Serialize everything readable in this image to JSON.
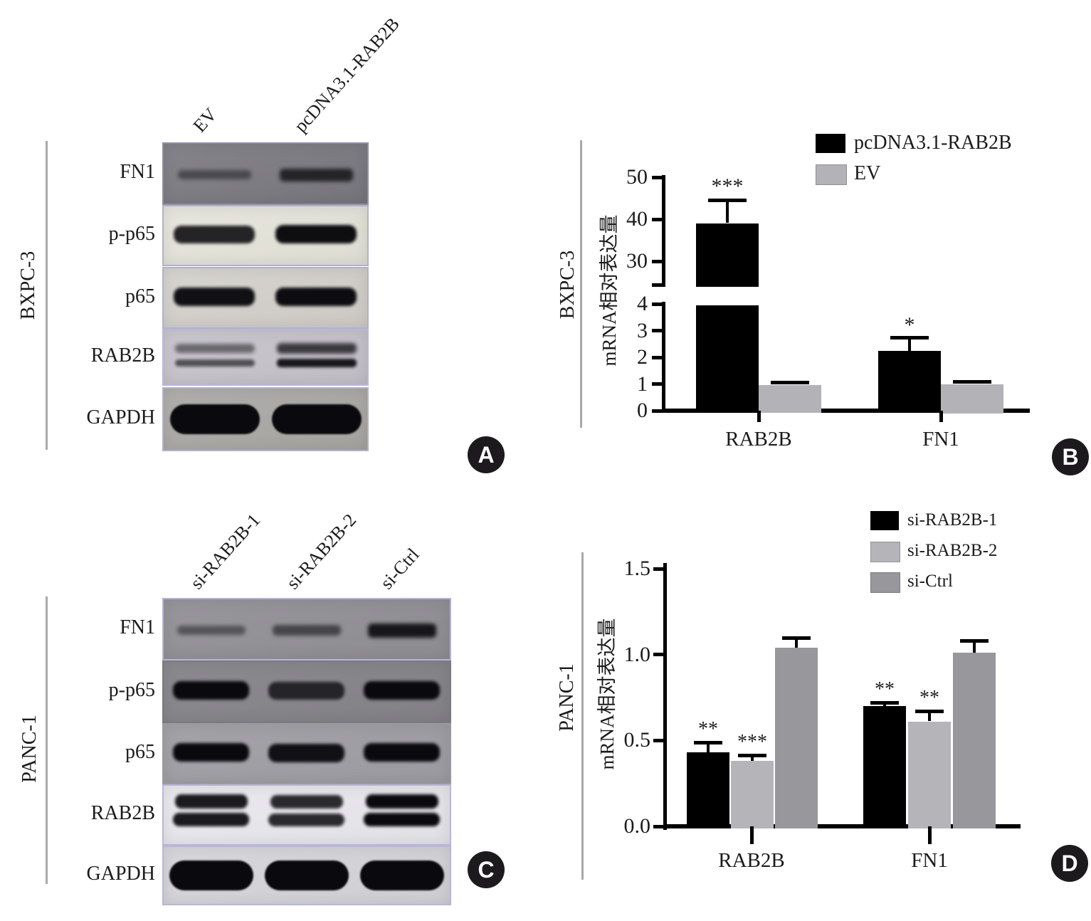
{
  "panels": {
    "A": {
      "label": "A",
      "type": "western_blot",
      "cell_line": "BXPC-3"
    },
    "B": {
      "label": "B",
      "type": "bar_chart",
      "cell_line": "BXPC-3"
    },
    "C": {
      "label": "C",
      "type": "western_blot",
      "cell_line": "PANC-1"
    },
    "D": {
      "label": "D",
      "type": "bar_chart",
      "cell_line": "PANC-1"
    }
  },
  "western_blots": {
    "A": {
      "cell_line": "BXPC-3",
      "lanes": [
        "EV",
        "pcDNA3.1-RAB2B"
      ],
      "rows": [
        {
          "protein": "FN1",
          "style": "faint",
          "bg": "#85848a",
          "bg2": "#76757b",
          "border": "#908fa6",
          "bands": [
            0.5,
            0.85
          ]
        },
        {
          "protein": "p-p65",
          "style": "strong",
          "bg": "#e7e6de",
          "bg2": "#deddd3",
          "border": "#b2b1cc",
          "bands": [
            0.88,
            0.98
          ]
        },
        {
          "protein": "p65",
          "style": "strong",
          "bg": "#d7d5d0",
          "bg2": "#ccc9c4",
          "border": "#b2b1cc",
          "bands": [
            0.96,
            0.98
          ]
        },
        {
          "protein": "RAB2B",
          "style": "double",
          "bg": "#cac8ce",
          "bg2": "#c0bec4",
          "border": "#b8b6dc",
          "bands": [
            0.62,
            0.92
          ]
        },
        {
          "protein": "GAPDH",
          "style": "blob",
          "bg": "#b1afac",
          "bg2": "#a5a3a0",
          "border": "#b2b1cc",
          "bands": [
            1,
            1
          ]
        }
      ]
    },
    "C": {
      "cell_line": "PANC-1",
      "lanes": [
        "si-RAB2B-1",
        "si-RAB2B-2",
        "si-Ctrl"
      ],
      "rows": [
        {
          "protein": "FN1",
          "style": "faint",
          "bg": "#97969b",
          "bg2": "#8d8c91",
          "border": "#b6b4d8",
          "bands": [
            0.5,
            0.62,
            1.0
          ]
        },
        {
          "protein": "p-p65",
          "style": "strong",
          "bg": "#8b8a8f",
          "bg2": "#828186",
          "border": "#7b7a7f",
          "bands": [
            1.0,
            0.78,
            1.0
          ]
        },
        {
          "protein": "p65",
          "style": "strong",
          "bg": "#a4a3a8",
          "bg2": "#9b9aa0",
          "border": "#9b9aa0",
          "bands": [
            1.0,
            0.95,
            1.0
          ]
        },
        {
          "protein": "RAB2B",
          "style": "double2",
          "bg": "#eae9ee",
          "bg2": "#e2e1e6",
          "border": "#b8b6dc",
          "bands": [
            0.92,
            0.85,
            1.0
          ]
        },
        {
          "protein": "GAPDH",
          "style": "blob",
          "bg": "#d8d7dc",
          "bg2": "#cfced3",
          "border": "#b8b6dc",
          "bands": [
            1,
            1,
            1
          ]
        }
      ]
    }
  },
  "chart_data": [
    {
      "panel": "B",
      "type": "bar",
      "cell_line": "BXPC-3",
      "title": "",
      "xlabel": "",
      "ylabel": "mRNA相对表达量",
      "categories": [
        "RAB2B",
        "FN1"
      ],
      "series": [
        {
          "name": "pcDNA3.1-RAB2B",
          "color": "#000000",
          "values": [
            39,
            2.25
          ],
          "errors": [
            5.5,
            0.45
          ],
          "sig": [
            "***",
            "*"
          ]
        },
        {
          "name": "EV",
          "color": "#b3b2b6",
          "values": [
            0.97,
            1.0
          ],
          "errors": [
            0.05,
            0.04
          ],
          "sig": [
            "",
            ""
          ]
        }
      ],
      "y_axis": {
        "broken": true,
        "lower_ticks": [
          0,
          1,
          2,
          3,
          4
        ],
        "upper_ticks": [
          30,
          40,
          50
        ],
        "lower_range": [
          0,
          4
        ],
        "upper_range": [
          25,
          50
        ]
      },
      "grid": false,
      "legend_position": "top-right"
    },
    {
      "panel": "D",
      "type": "bar",
      "cell_line": "PANC-1",
      "title": "",
      "xlabel": "",
      "ylabel": "mRNA相对表达量",
      "categories": [
        "RAB2B",
        "FN1"
      ],
      "series": [
        {
          "name": "si-RAB2B-1",
          "color": "#000000",
          "values": [
            0.43,
            0.7
          ],
          "errors": [
            0.06,
            0.02
          ],
          "sig": [
            "**",
            "**"
          ]
        },
        {
          "name": "si-RAB2B-2",
          "color": "#b5b4b9",
          "values": [
            0.38,
            0.61
          ],
          "errors": [
            0.035,
            0.06
          ],
          "sig": [
            "***",
            "**"
          ]
        },
        {
          "name": "si-Ctrl",
          "color": "#98979c",
          "values": [
            1.04,
            1.01
          ],
          "errors": [
            0.06,
            0.07
          ],
          "sig": [
            "",
            ""
          ]
        }
      ],
      "y_axis": {
        "broken": false,
        "ticks": [
          "0.0",
          "0.5",
          "1.0",
          "1.5"
        ],
        "range": [
          0,
          1.5
        ]
      },
      "grid": false,
      "legend_position": "top-right"
    }
  ]
}
